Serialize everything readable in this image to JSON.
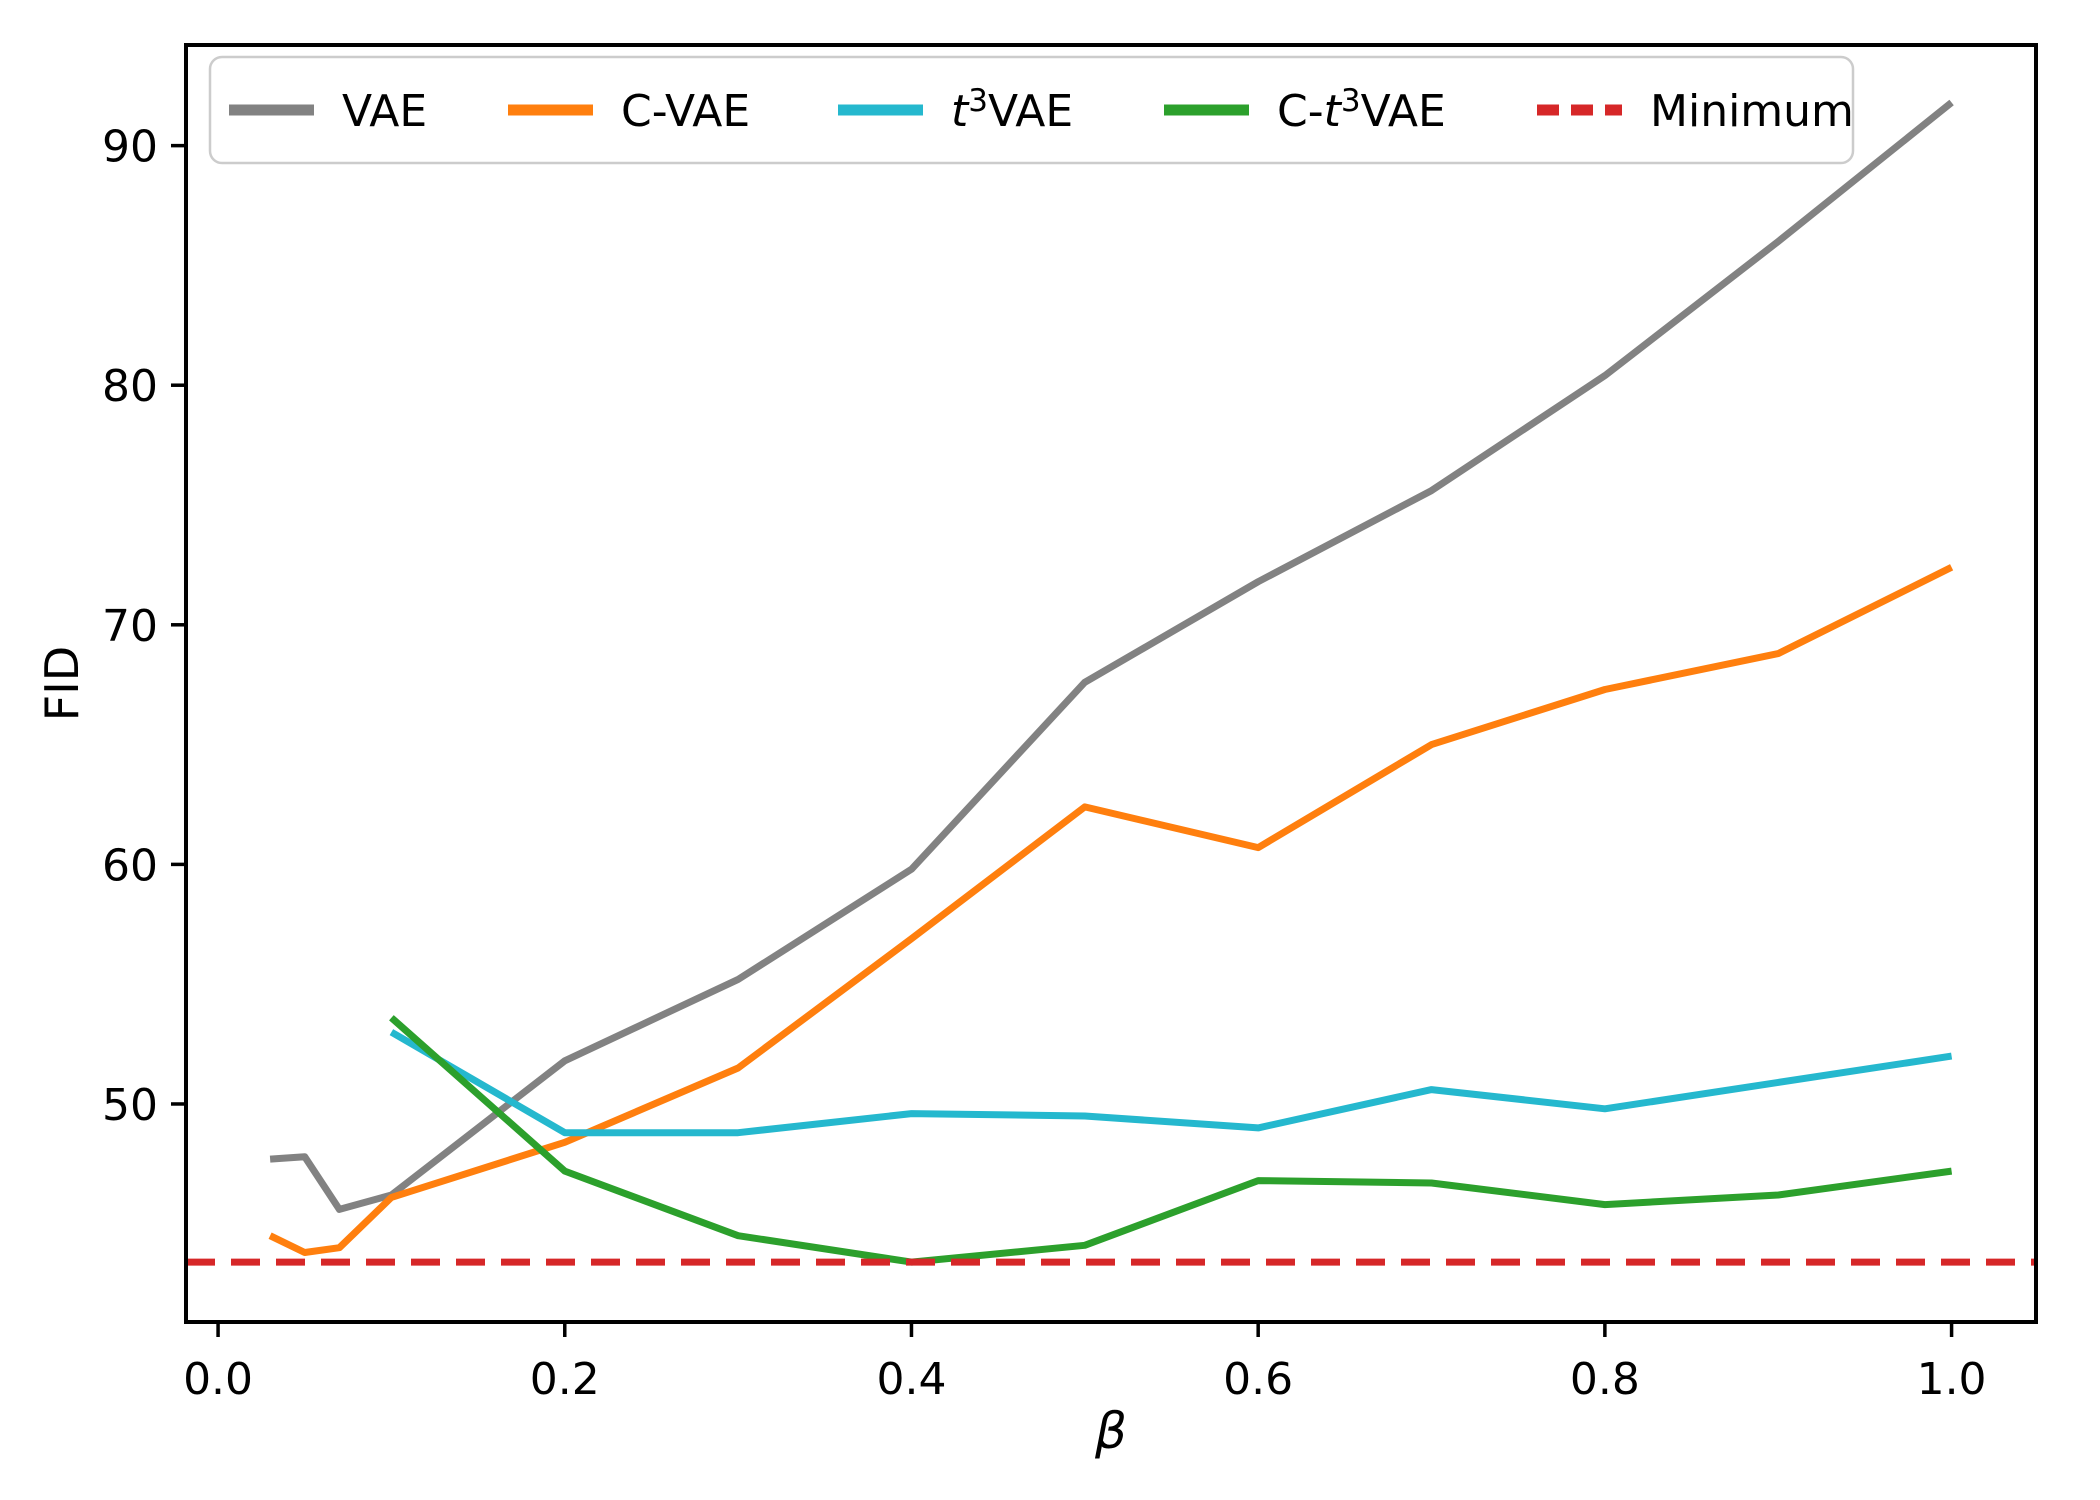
{
  "page": {
    "background": "#ffffff"
  },
  "chart_data": {
    "type": "line",
    "title": "",
    "xlabel": "β",
    "ylabel": "FID",
    "x_ticks": [
      0.0,
      0.2,
      0.4,
      0.6,
      0.8,
      1.0
    ],
    "x_tick_labels": [
      "0.0",
      "0.2",
      "0.4",
      "0.6",
      "0.8",
      "1.0"
    ],
    "y_ticks": [
      50,
      60,
      70,
      80,
      90
    ],
    "y_tick_labels": [
      "50",
      "60",
      "70",
      "80",
      "90"
    ],
    "xlim": [
      -0.0185,
      1.0487
    ],
    "ylim": [
      40.9,
      94.2
    ],
    "grid": false,
    "legend_position": "upper left",
    "axis_color": "#000000",
    "series": [
      {
        "name": "VAE",
        "color": "#828282",
        "dashed": false,
        "x": [
          0.03,
          0.05,
          0.07,
          0.1,
          0.2,
          0.3,
          0.4,
          0.5,
          0.6,
          0.7,
          0.8,
          0.9,
          1.0
        ],
        "y": [
          47.7,
          47.8,
          45.6,
          46.2,
          51.8,
          55.2,
          59.8,
          67.6,
          71.8,
          75.6,
          80.4,
          86.0,
          91.8
        ]
      },
      {
        "name": "C-VAE",
        "color": "#ff7f0e",
        "dashed": false,
        "x": [
          0.03,
          0.05,
          0.07,
          0.1,
          0.2,
          0.3,
          0.4,
          0.5,
          0.6,
          0.7,
          0.8,
          0.9,
          1.0
        ],
        "y": [
          44.5,
          43.8,
          44.0,
          46.1,
          48.4,
          51.5,
          56.9,
          62.4,
          60.7,
          65.0,
          67.3,
          68.8,
          72.4
        ]
      },
      {
        "name": "t³VAE",
        "color": "#25b8ce",
        "dashed": false,
        "x": [
          0.1,
          0.2,
          0.3,
          0.4,
          0.5,
          0.6,
          0.7,
          0.8,
          0.9,
          1.0
        ],
        "y": [
          53.0,
          48.8,
          48.8,
          49.6,
          49.5,
          49.0,
          50.6,
          49.8,
          50.9,
          52.0
        ]
      },
      {
        "name": "C-t³VAE",
        "color": "#2ca02c",
        "dashed": false,
        "x": [
          0.1,
          0.2,
          0.3,
          0.4,
          0.5,
          0.6,
          0.7,
          0.8,
          0.9,
          1.0
        ],
        "y": [
          53.6,
          47.2,
          44.5,
          43.4,
          44.1,
          46.8,
          46.7,
          45.8,
          46.2,
          47.2
        ]
      },
      {
        "name": "Minimum",
        "color": "#d62728",
        "dashed": true,
        "ref_value": 43.4
      }
    ],
    "legend_labels": [
      "VAE",
      "C-VAE",
      "t³VAE",
      "C-t³VAE",
      "Minimum"
    ]
  }
}
